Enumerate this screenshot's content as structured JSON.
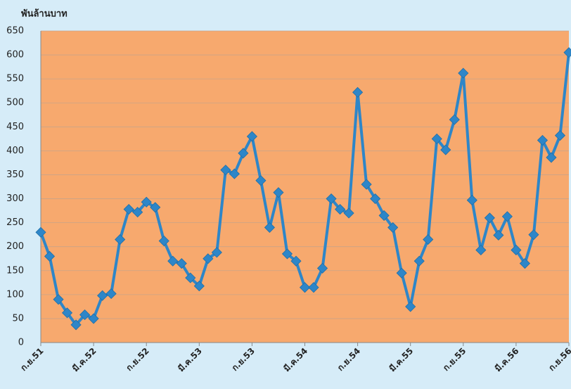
{
  "chart_data": {
    "type": "line",
    "y_axis_label": "พันล้านบาท",
    "categories": [
      "ก.ย.51",
      null,
      null,
      null,
      null,
      null,
      "มี.ค.52",
      null,
      null,
      null,
      null,
      null,
      "ก.ย.52",
      null,
      null,
      null,
      null,
      null,
      "มี.ค.53",
      null,
      null,
      null,
      null,
      null,
      "ก.ย.53",
      null,
      null,
      null,
      null,
      null,
      "มี.ค.54",
      null,
      null,
      null,
      null,
      null,
      "ก.ย.54",
      null,
      null,
      null,
      null,
      null,
      "มี.ค.55",
      null,
      null,
      null,
      null,
      null,
      "ก.ย.55",
      null,
      null,
      null,
      null,
      null,
      "มี.ค.56",
      null,
      null,
      null,
      null,
      null,
      "ก.ย.56"
    ],
    "series": [
      {
        "color": "#2e86c8",
        "values": [
          230,
          180,
          90,
          62,
          37,
          58,
          50,
          98,
          102,
          215,
          278,
          272,
          293,
          282,
          212,
          170,
          165,
          135,
          118,
          175,
          188,
          360,
          352,
          395,
          430,
          338,
          240,
          313,
          185,
          170,
          115,
          115,
          155,
          300,
          278,
          270,
          522,
          330,
          300,
          265,
          240,
          145,
          75,
          170,
          215,
          425,
          402,
          465,
          562,
          297,
          193,
          260,
          224,
          263,
          193,
          165,
          225,
          422,
          386,
          432,
          605
        ]
      }
    ],
    "ylim": [
      0,
      650
    ],
    "yticks": [
      0,
      50,
      100,
      150,
      200,
      250,
      300,
      350,
      400,
      450,
      500,
      550,
      600,
      650
    ],
    "grid": true,
    "plot_color": "#f7a96e",
    "background": "#d6ecf8"
  }
}
